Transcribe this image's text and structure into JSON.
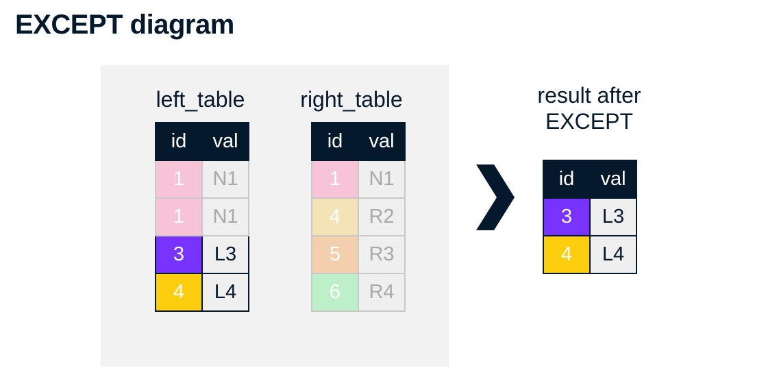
{
  "title": "EXCEPT diagram",
  "left_table": {
    "caption": "left_table",
    "headers": [
      "id",
      "val"
    ],
    "rows": [
      {
        "id": "1",
        "val": "N1"
      },
      {
        "id": "1",
        "val": "N1"
      },
      {
        "id": "3",
        "val": "L3"
      },
      {
        "id": "4",
        "val": "L4"
      }
    ]
  },
  "right_table": {
    "caption": "right_table",
    "headers": [
      "id",
      "val"
    ],
    "rows": [
      {
        "id": "1",
        "val": "N1"
      },
      {
        "id": "4",
        "val": "R2"
      },
      {
        "id": "5",
        "val": "R3"
      },
      {
        "id": "6",
        "val": "R4"
      }
    ]
  },
  "result_table": {
    "caption": "result after EXCEPT",
    "headers": [
      "id",
      "val"
    ],
    "rows": [
      {
        "id": "3",
        "val": "L3"
      },
      {
        "id": "4",
        "val": "L4"
      }
    ]
  },
  "colors": {
    "navy": "#05192d",
    "pink": "#f6c4d6",
    "beige": "#f3e3b7",
    "peach": "#f4cfae",
    "green": "#bdf0c8",
    "purple": "#7933ff",
    "yellow": "#fcce0d"
  },
  "icons": {
    "arrow": "chevron-right-icon"
  }
}
